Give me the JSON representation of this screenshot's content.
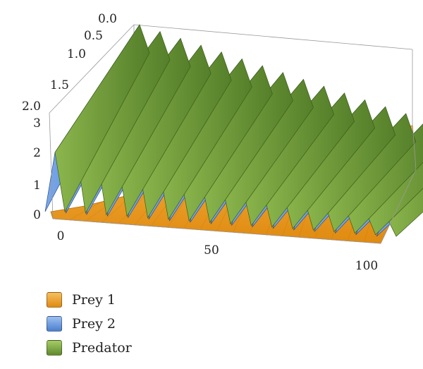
{
  "chart_data": {
    "type": "surface3d",
    "title": "",
    "x_ticks": [
      "0",
      "50",
      "100"
    ],
    "y_ticks": [
      "0.0",
      "0.5",
      "1.0",
      "1.5",
      "2.0"
    ],
    "z_ticks": [
      "0",
      "1",
      "2",
      "3"
    ],
    "xlim": [
      0,
      100
    ],
    "ylim": [
      0,
      2
    ],
    "zlim": [
      0,
      3
    ],
    "series": [
      {
        "name": "Prey 1",
        "color": "#f0a020",
        "level": 0.08,
        "amplitude": 0.0,
        "peaks_count": 0
      },
      {
        "name": "Prey 2",
        "color": "#5b8fd8",
        "level": 0.2,
        "amplitude": 2.2,
        "peaks_count": 17
      },
      {
        "name": "Predator",
        "color": "#6e9a3a",
        "level": 0.3,
        "amplitude": 2.6,
        "peaks_count": 17
      }
    ]
  },
  "legend": {
    "items": [
      {
        "label": "Prey 1",
        "color": "#f0a020"
      },
      {
        "label": "Prey 2",
        "color": "#5b8fd8"
      },
      {
        "label": "Predator",
        "color": "#6e9a3a"
      }
    ]
  }
}
